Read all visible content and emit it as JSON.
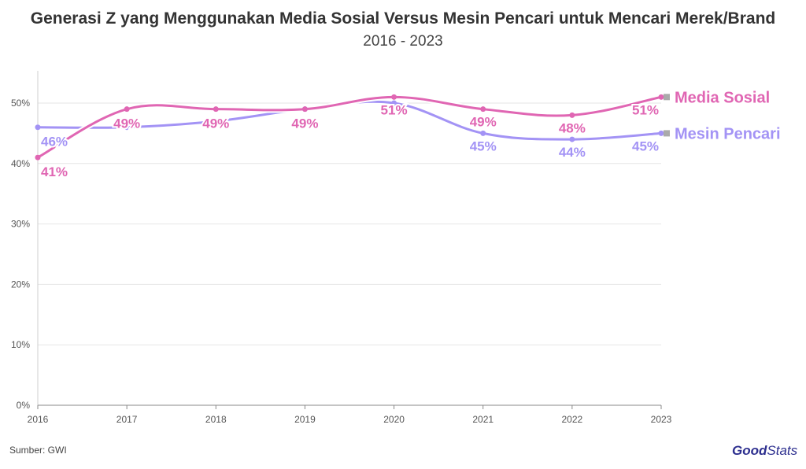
{
  "title": "Generasi Z yang Menggunakan Media Sosial Versus Mesin Pencari untuk Mencari Merek/Brand",
  "subtitle": "2016 - 2023",
  "source": "Sumber: GWI",
  "logo": {
    "bold": "Good",
    "light": "Stats"
  },
  "chart_data": {
    "type": "line",
    "x": [
      "2016",
      "2017",
      "2018",
      "2019",
      "2020",
      "2021",
      "2022",
      "2023"
    ],
    "ylim": [
      0,
      55
    ],
    "yticks": [
      0,
      10,
      20,
      30,
      40,
      50
    ],
    "ytick_labels": [
      "0%",
      "10%",
      "20%",
      "30%",
      "40%",
      "50%"
    ],
    "grid": true,
    "series": [
      {
        "name": "Media Sosial",
        "color": "#e066b3",
        "values": [
          41,
          49,
          49,
          49,
          51,
          49,
          48,
          51
        ],
        "labels": [
          "41%",
          "49%",
          "49%",
          "49%",
          "51%",
          "49%",
          "48%",
          "51%"
        ]
      },
      {
        "name": "Mesin Pencari",
        "color": "#a393f5",
        "values": [
          46,
          46,
          47,
          49,
          50,
          45,
          44,
          45
        ],
        "labels": [
          "46%",
          "",
          "",
          "",
          "",
          "45%",
          "44%",
          "45%"
        ]
      }
    ]
  }
}
